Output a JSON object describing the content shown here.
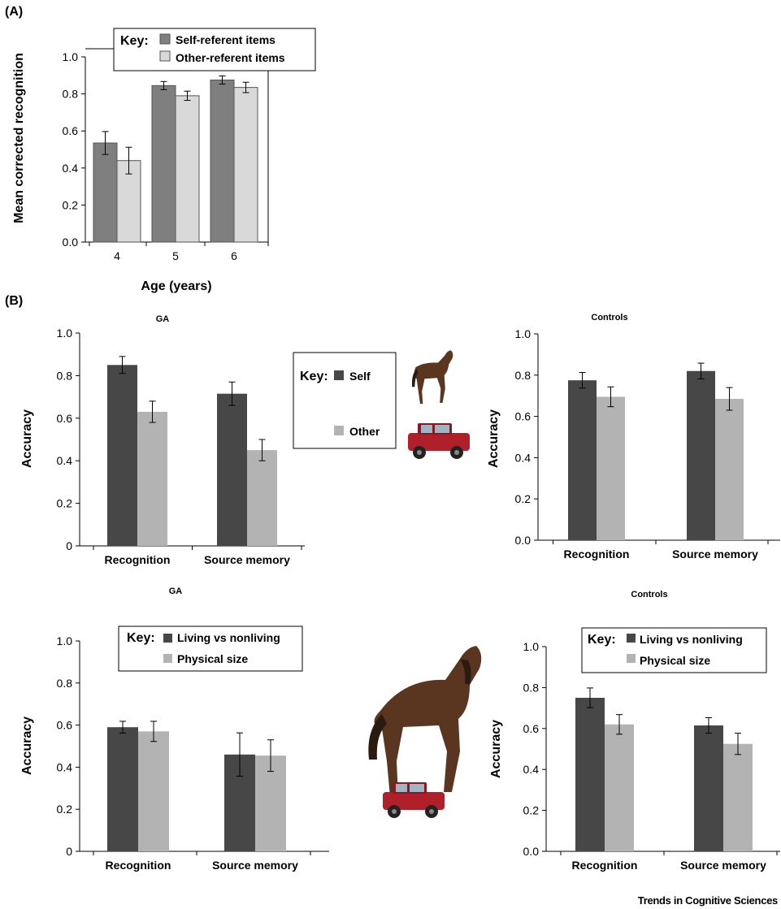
{
  "figure": {
    "panel_labels": [
      "(A)",
      "(B)"
    ],
    "credit": "Trends in Cognitive Sciences"
  },
  "colors": {
    "chartA_self": "#7f7f7f",
    "chartA_other": "#d9d9d9",
    "chartB_dark": "#474747",
    "chartB_light": "#b3b3b3",
    "horse_body": "#5a3520",
    "jeep_body": "#b0202a"
  },
  "icons": [
    "horse-image",
    "jeep-image"
  ],
  "chart_data": [
    {
      "id": "chartA",
      "type": "bar",
      "title": "",
      "xlabel": "Age (years)",
      "ylabel": "Mean corrected recognition",
      "categories": [
        "4",
        "5",
        "6"
      ],
      "series": [
        {
          "name": "Self-referent items",
          "values": [
            0.535,
            0.845,
            0.875
          ],
          "errors": [
            0.062,
            0.022,
            0.022
          ]
        },
        {
          "name": "Other-referent items",
          "values": [
            0.44,
            0.79,
            0.835
          ],
          "errors": [
            0.072,
            0.025,
            0.028
          ]
        }
      ],
      "ylim": [
        0,
        1.0
      ],
      "yticks": [
        "0.0",
        "0.2",
        "0.4",
        "0.6",
        "0.8",
        "1.0"
      ],
      "legend_lead": "Key:",
      "legend_placement": "top-right",
      "grid": false
    },
    {
      "id": "chartB1",
      "type": "bar",
      "title": "GA",
      "xlabel": "",
      "ylabel": "Accuracy",
      "categories": [
        "Recognition",
        "Source memory"
      ],
      "series": [
        {
          "name": "Self",
          "values": [
            0.85,
            0.715
          ],
          "errors": [
            0.04,
            0.055
          ]
        },
        {
          "name": "Other",
          "values": [
            0.63,
            0.45
          ],
          "errors": [
            0.05,
            0.05
          ]
        }
      ],
      "ylim": [
        0,
        1.0
      ],
      "yticks": [
        "0",
        "0.2",
        "0.4",
        "0.6",
        "0.8",
        "1.0"
      ],
      "legend_lead": "Key:",
      "legend_placement": "right",
      "grid": false
    },
    {
      "id": "chartB2",
      "type": "bar",
      "title": "Controls",
      "xlabel": "",
      "ylabel": "Accuracy",
      "categories": [
        "Recognition",
        "Source memory"
      ],
      "series": [
        {
          "name": "Self",
          "values": [
            0.775,
            0.82
          ],
          "errors": [
            0.038,
            0.038
          ]
        },
        {
          "name": "Other",
          "values": [
            0.695,
            0.685
          ],
          "errors": [
            0.048,
            0.055
          ]
        }
      ],
      "ylim": [
        0,
        1.0
      ],
      "yticks": [
        "0.0",
        "0.2",
        "0.4",
        "0.6",
        "0.8",
        "1.0"
      ],
      "grid": false
    },
    {
      "id": "chartB3",
      "type": "bar",
      "title": "GA",
      "xlabel": "",
      "ylabel": "Accuracy",
      "categories": [
        "Recognition",
        "Source memory"
      ],
      "series": [
        {
          "name": "Living vs nonliving",
          "values": [
            0.59,
            0.46
          ],
          "errors": [
            0.028,
            0.103
          ]
        },
        {
          "name": "Physical size",
          "values": [
            0.57,
            0.455
          ],
          "errors": [
            0.048,
            0.075
          ]
        }
      ],
      "ylim": [
        0,
        1.0
      ],
      "yticks": [
        "0",
        "0.2",
        "0.4",
        "0.6",
        "0.8",
        "1.0"
      ],
      "legend_lead": "Key:",
      "legend_placement": "top",
      "grid": false
    },
    {
      "id": "chartB4",
      "type": "bar",
      "title": "Controls",
      "xlabel": "",
      "ylabel": "Accuracy",
      "categories": [
        "Recognition",
        "Source memory"
      ],
      "series": [
        {
          "name": "Living vs nonliving",
          "values": [
            0.75,
            0.615
          ],
          "errors": [
            0.048,
            0.038
          ]
        },
        {
          "name": "Physical size",
          "values": [
            0.62,
            0.525
          ],
          "errors": [
            0.048,
            0.052
          ]
        }
      ],
      "ylim": [
        0,
        1.0
      ],
      "yticks": [
        "0.0",
        "0.2",
        "0.4",
        "0.6",
        "0.8",
        "1.0"
      ],
      "legend_lead": "Key:",
      "legend_placement": "top",
      "grid": false
    }
  ]
}
